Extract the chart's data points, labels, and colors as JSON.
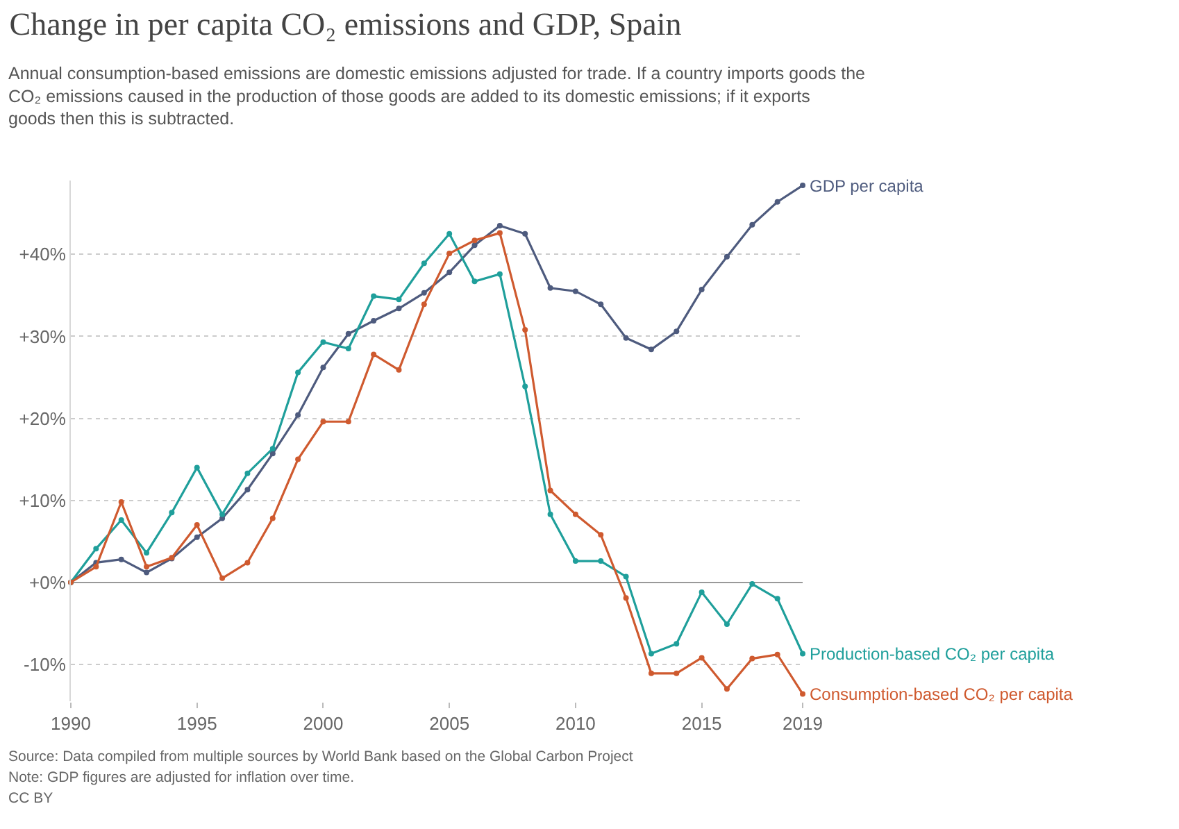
{
  "chart_data": {
    "type": "line",
    "title": "Change in per capita CO₂ emissions and GDP, Spain",
    "subtitle": "Annual consumption-based emissions are domestic emissions adjusted for trade. If a country imports goods the CO₂ emissions caused in the production of those goods are added to its domestic emissions; if it exports goods then this is subtracted.",
    "x": [
      1990,
      1991,
      1992,
      1993,
      1994,
      1995,
      1996,
      1997,
      1998,
      1999,
      2000,
      2001,
      2002,
      2003,
      2004,
      2005,
      2006,
      2007,
      2008,
      2009,
      2010,
      2011,
      2012,
      2013,
      2014,
      2015,
      2016,
      2017,
      2018,
      2019
    ],
    "series": [
      {
        "name": "GDP per capita",
        "color": "#4e5b7e",
        "values": [
          0,
          2.4,
          2.8,
          1.2,
          2.9,
          5.5,
          7.8,
          11.3,
          15.7,
          20.4,
          26.2,
          30.3,
          31.9,
          33.4,
          35.3,
          37.8,
          41.1,
          43.5,
          42.5,
          35.9,
          35.5,
          33.9,
          29.8,
          28.4,
          30.6,
          35.7,
          39.7,
          43.6,
          46.4,
          48.4
        ]
      },
      {
        "name": "Production-based CO₂ per capita",
        "color": "#1f9f9b",
        "values": [
          0,
          4.1,
          7.6,
          3.6,
          8.5,
          14.0,
          8.3,
          13.3,
          16.3,
          25.6,
          29.3,
          28.5,
          34.9,
          34.5,
          38.9,
          42.5,
          36.7,
          37.6,
          23.9,
          8.3,
          2.6,
          2.6,
          0.7,
          -8.7,
          -7.5,
          -1.2,
          -5.1,
          -0.2,
          -2.0,
          -8.7
        ]
      },
      {
        "name": "Consumption-based CO₂ per capita",
        "color": "#cf5a2f",
        "values": [
          0,
          1.9,
          9.8,
          1.9,
          3.0,
          7.0,
          0.5,
          2.4,
          7.8,
          15.0,
          19.6,
          19.6,
          27.8,
          25.9,
          33.9,
          40.1,
          41.7,
          42.6,
          30.8,
          11.2,
          8.3,
          5.8,
          -1.9,
          -11.1,
          -11.1,
          -9.2,
          -13.0,
          -9.3,
          -8.8,
          -13.6
        ]
      }
    ],
    "xlim": [
      1990,
      2019
    ],
    "xticks": [
      1990,
      1995,
      2000,
      2005,
      2010,
      2015,
      2019
    ],
    "ylim": [
      -14.5,
      49
    ],
    "yticks": [
      {
        "value": -10,
        "label": "-10%"
      },
      {
        "value": 0,
        "label": "+0%"
      },
      {
        "value": 10,
        "label": "+10%"
      },
      {
        "value": 20,
        "label": "+20%"
      },
      {
        "value": 30,
        "label": "+30%"
      },
      {
        "value": 40,
        "label": "+40%"
      }
    ],
    "grid": "y",
    "marker": "circle",
    "line_style": "solid",
    "legend": false,
    "annotations": [
      "Source: Data compiled from multiple sources by World Bank based on the Global Carbon Project",
      "Note: GDP figures are adjusted for inflation over time.",
      "CC BY"
    ]
  }
}
